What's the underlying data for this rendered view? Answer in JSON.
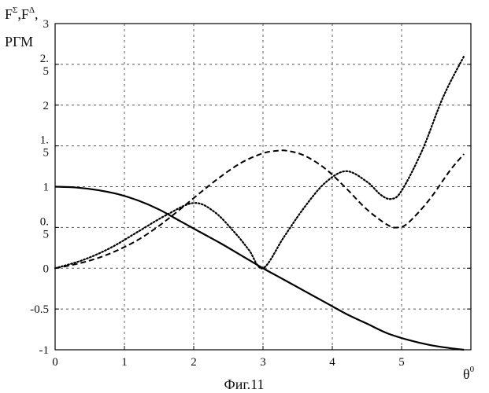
{
  "caption": "Фиг.11",
  "chart_data": {
    "type": "line",
    "ylabel": {
      "line1_prefix_a": "F",
      "line1_sup_a": "Σ",
      "line1_sep": ",",
      "line1_prefix_b": "F",
      "line1_sup_b": "Δ",
      "line1_suffix": ",",
      "line2": "РГМ"
    },
    "xlabel": {
      "base": "θ",
      "sup": "0"
    },
    "xlim": [
      0,
      6
    ],
    "ylim": [
      -1,
      3
    ],
    "grid": true,
    "grid_style": "dashed",
    "x_ticks": [
      {
        "value": 0,
        "label": "0"
      },
      {
        "value": 1,
        "label": "1"
      },
      {
        "value": 2,
        "label": "2"
      },
      {
        "value": 3,
        "label": "3"
      },
      {
        "value": 4,
        "label": "4"
      },
      {
        "value": 5,
        "label": "5"
      }
    ],
    "y_ticks": [
      {
        "value": 3,
        "lines": [
          "3"
        ]
      },
      {
        "value": 2.5,
        "lines": [
          "2.",
          "5"
        ]
      },
      {
        "value": 2,
        "lines": [
          "2"
        ]
      },
      {
        "value": 1.5,
        "lines": [
          "1.",
          "5"
        ]
      },
      {
        "value": 1,
        "lines": [
          "1"
        ]
      },
      {
        "value": 0.5,
        "lines": [
          "0.",
          "5"
        ]
      },
      {
        "value": 0,
        "lines": [
          "0"
        ]
      },
      {
        "value": -0.5,
        "lines": [
          "-0.5"
        ]
      },
      {
        "value": -1,
        "lines": [
          "-1"
        ]
      }
    ],
    "series": [
      {
        "style": "solid",
        "color": "#000000",
        "x": [
          0,
          0.3,
          0.6,
          0.9,
          1.2,
          1.5,
          1.8,
          2.1,
          2.4,
          2.7,
          3.0,
          3.3,
          3.6,
          3.9,
          4.2,
          4.5,
          4.8,
          5.1,
          5.4,
          5.7,
          5.9
        ],
        "y": [
          1.0,
          0.99,
          0.96,
          0.91,
          0.83,
          0.72,
          0.58,
          0.44,
          0.3,
          0.15,
          0.0,
          -0.14,
          -0.28,
          -0.42,
          -0.56,
          -0.68,
          -0.8,
          -0.88,
          -0.94,
          -0.98,
          -1.0
        ]
      },
      {
        "style": "dashed",
        "color": "#000000",
        "x": [
          0,
          0.3,
          0.6,
          0.9,
          1.2,
          1.5,
          1.8,
          2.1,
          2.4,
          2.7,
          3.0,
          3.2,
          3.35,
          3.6,
          3.9,
          4.2,
          4.5,
          4.8,
          4.95,
          5.1,
          5.4,
          5.7,
          5.9
        ],
        "y": [
          0.0,
          0.05,
          0.12,
          0.22,
          0.35,
          0.52,
          0.72,
          0.93,
          1.13,
          1.3,
          1.41,
          1.44,
          1.44,
          1.38,
          1.22,
          0.98,
          0.72,
          0.53,
          0.5,
          0.56,
          0.84,
          1.2,
          1.4
        ]
      },
      {
        "style": "dotted",
        "color": "#000000",
        "x": [
          0,
          0.4,
          0.8,
          1.2,
          1.6,
          2.0,
          2.3,
          2.6,
          2.8,
          3.0,
          3.3,
          3.6,
          3.9,
          4.2,
          4.5,
          4.7,
          4.85,
          5.0,
          5.3,
          5.6,
          5.9
        ],
        "y": [
          0.0,
          0.1,
          0.25,
          0.45,
          0.65,
          0.8,
          0.69,
          0.43,
          0.22,
          0.0,
          0.38,
          0.75,
          1.05,
          1.19,
          1.06,
          0.9,
          0.85,
          0.95,
          1.45,
          2.1,
          2.6
        ]
      }
    ]
  }
}
